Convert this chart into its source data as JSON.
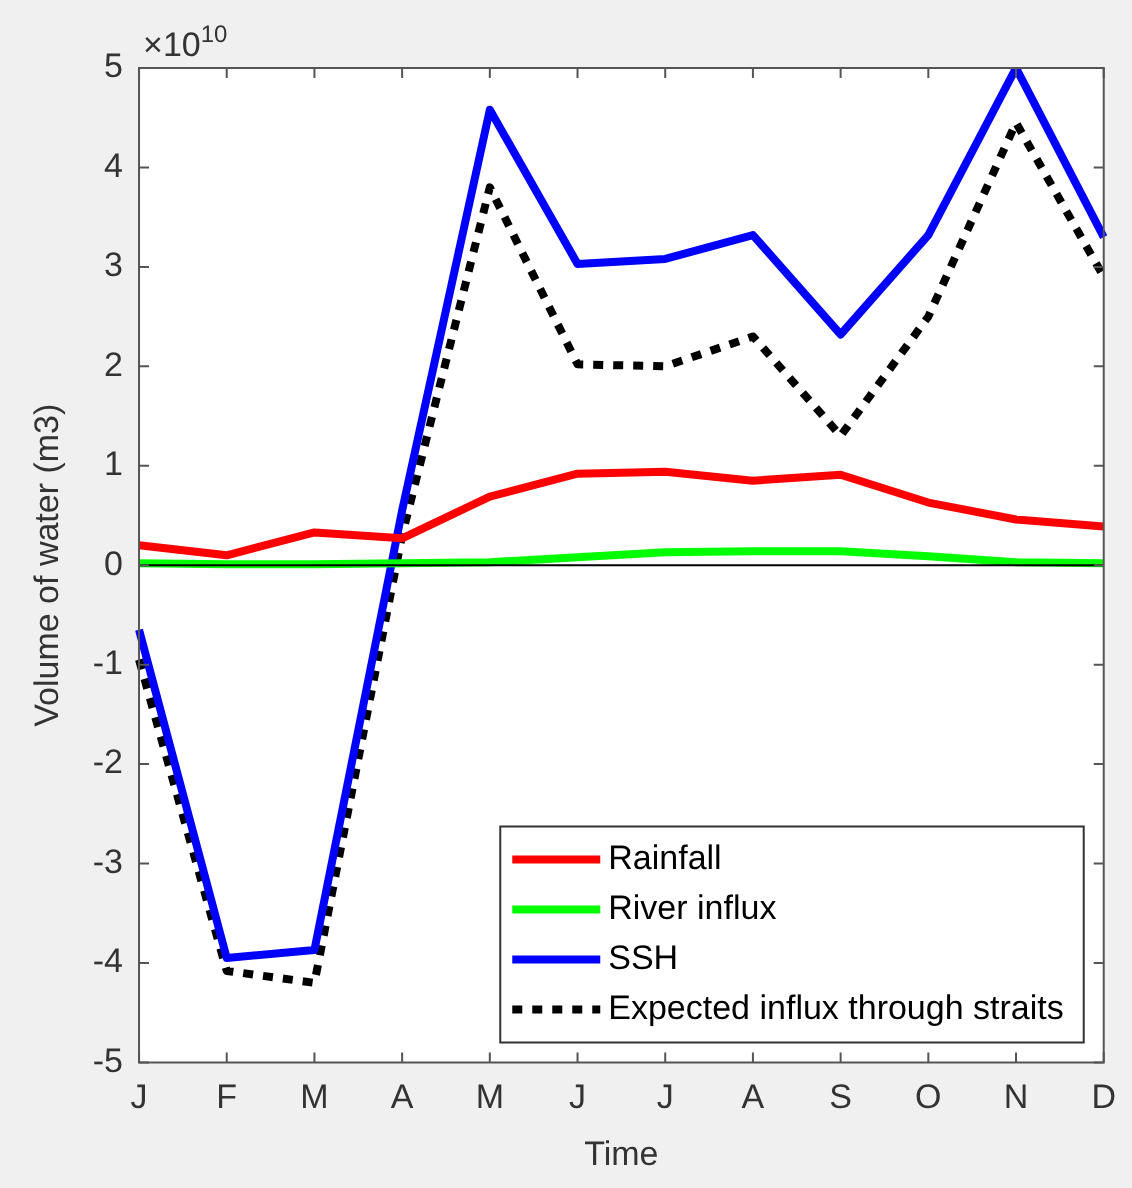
{
  "chart_data": {
    "type": "line",
    "xlabel": "Time",
    "ylabel": "Volume of water (m3)",
    "annotations": [
      "×10$^{10}$"
    ],
    "categories": [
      "J",
      "F",
      "M",
      "A",
      "M",
      "J",
      "J",
      "A",
      "S",
      "O",
      "N",
      "D"
    ],
    "series": [
      {
        "name": "Rainfall",
        "color": "#ff0000",
        "values": [
          0.2,
          0.1,
          0.33,
          0.27,
          0.69,
          0.92,
          0.94,
          0.85,
          0.91,
          0.63,
          0.46,
          0.39
        ]
      },
      {
        "name": "River influx",
        "color": "#00ff00",
        "values": [
          0.02,
          0.01,
          0.01,
          0.02,
          0.03,
          0.08,
          0.13,
          0.14,
          0.14,
          0.09,
          0.03,
          0.02
        ]
      },
      {
        "name": "SSH",
        "color": "#0000ff",
        "values": [
          -0.65,
          -3.95,
          -3.87,
          0.55,
          4.58,
          3.03,
          3.08,
          3.32,
          2.32,
          3.32,
          5.0,
          3.3
        ]
      },
      {
        "name": "Expected influx through straits",
        "color": "#000000",
        "line_style": "dotted",
        "values": [
          -0.95,
          -4.08,
          -4.2,
          0.3,
          3.8,
          2.02,
          2.0,
          2.3,
          1.3,
          2.5,
          4.45,
          2.9
        ]
      }
    ],
    "ylim": [
      -5,
      5
    ],
    "yticks": [
      -5,
      -4,
      -3,
      -2,
      -1,
      0,
      1,
      2,
      3,
      4,
      5
    ],
    "ref_lines": [
      {
        "axis": "y",
        "value": 0,
        "color": "#000000"
      }
    ],
    "grid": false,
    "legend": "bottom right",
    "marker": "none"
  }
}
